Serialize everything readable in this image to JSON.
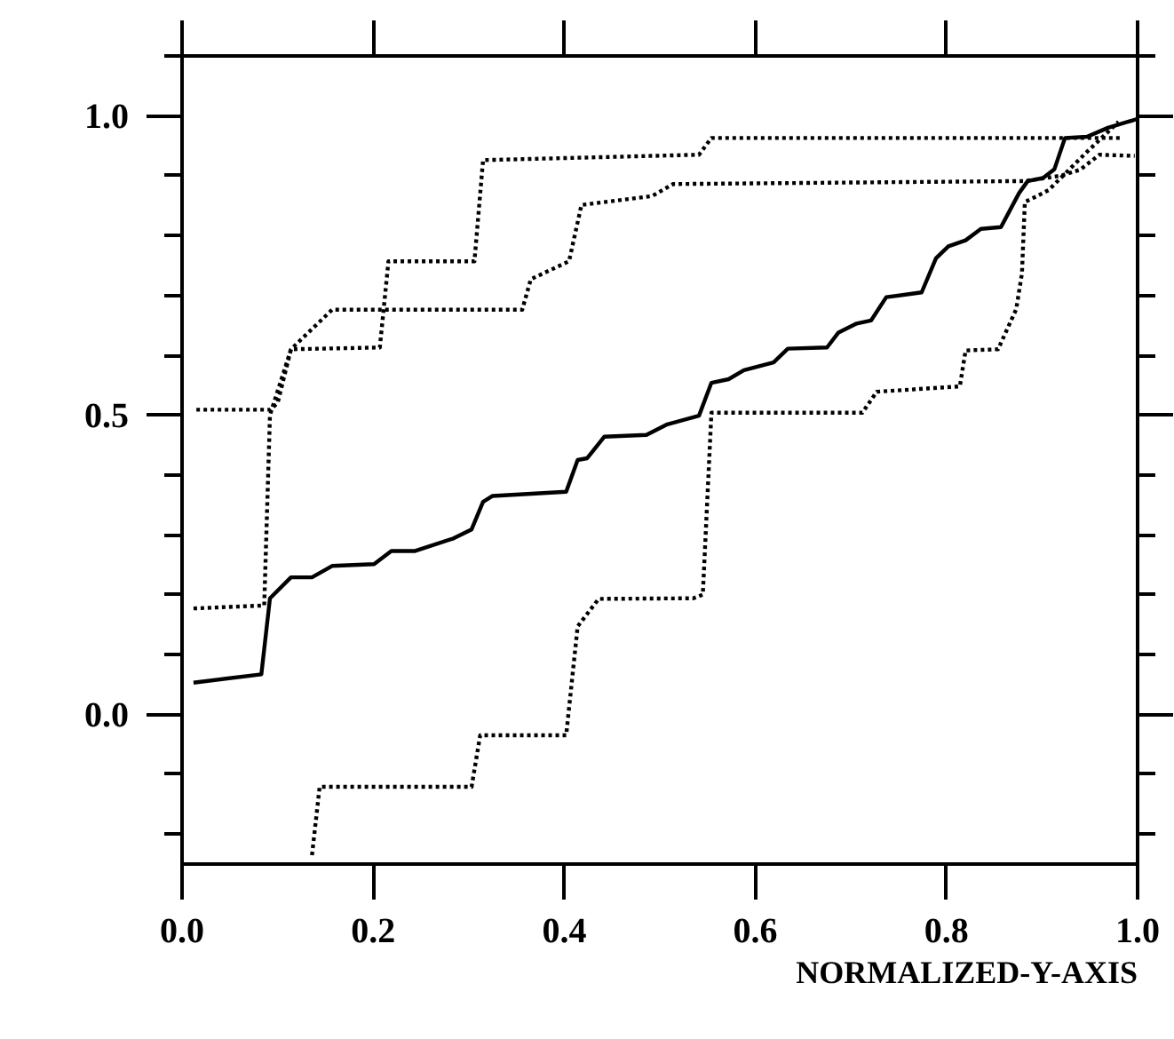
{
  "chart_data": {
    "type": "line",
    "xlabel": "NORMALIZED-Y-AXIS",
    "xlim": [
      0,
      1.0
    ],
    "ylim": [
      -0.25,
      1.1
    ],
    "xticks": [
      {
        "value": 0,
        "label": "0.0"
      },
      {
        "value": 0.2,
        "label": "0.2"
      },
      {
        "value": 0.4,
        "label": "0.4"
      },
      {
        "value": 0.6,
        "label": "0.6"
      },
      {
        "value": 0.8,
        "label": "0.8"
      },
      {
        "value": 1.0,
        "label": "1.0"
      }
    ],
    "yticks": [
      {
        "value": -0.2,
        "label": null
      },
      {
        "value": -0.1,
        "label": null
      },
      {
        "value": 0,
        "label": "0.0"
      },
      {
        "value": 0.1,
        "label": null
      },
      {
        "value": 0.2,
        "label": null
      },
      {
        "value": 0.3,
        "label": null
      },
      {
        "value": 0.4,
        "label": null
      },
      {
        "value": 0.5,
        "label": "0.5"
      },
      {
        "value": 0.6,
        "label": null
      },
      {
        "value": 0.7,
        "label": null
      },
      {
        "value": 0.8,
        "label": null
      },
      {
        "value": 0.9,
        "label": null
      },
      {
        "value": 1.0,
        "label": "1.0"
      },
      {
        "value": 1.1,
        "label": null
      }
    ],
    "grid": false,
    "marker": "none",
    "line_style": "solid",
    "series": [
      {
        "color": "#000000",
        "x": [
          0.012,
          0.083,
          0.092,
          0.114,
          0.136,
          0.157,
          0.201,
          0.219,
          0.244,
          0.284,
          0.303,
          0.315,
          0.325,
          0.402,
          0.414,
          0.424,
          0.442,
          0.486,
          0.507,
          0.541,
          0.554,
          0.572,
          0.588,
          0.619,
          0.634,
          0.675,
          0.687,
          0.706,
          0.721,
          0.737,
          0.774,
          0.789,
          0.802,
          0.82,
          0.836,
          0.857,
          0.876,
          0.885,
          0.901,
          0.913,
          0.924,
          0.947,
          0.969,
          0.994,
          1.0
        ],
        "values": [
          0.053,
          0.067,
          0.194,
          0.229,
          0.229,
          0.248,
          0.251,
          0.273,
          0.273,
          0.294,
          0.309,
          0.355,
          0.365,
          0.372,
          0.425,
          0.428,
          0.464,
          0.467,
          0.484,
          0.499,
          0.554,
          0.56,
          0.575,
          0.588,
          0.611,
          0.613,
          0.638,
          0.653,
          0.658,
          0.697,
          0.705,
          0.762,
          0.782,
          0.792,
          0.811,
          0.814,
          0.871,
          0.891,
          0.896,
          0.911,
          0.963,
          0.965,
          0.98,
          0.992,
          0.995
        ]
      },
      {
        "color": "#000000",
        "line_style": "dotted",
        "x": [
          0.015,
          0.092,
          0.1,
          0.114,
          0.207,
          0.216,
          0.306,
          0.315,
          0.541,
          0.554,
          0.985
        ],
        "values": [
          0.509,
          0.509,
          0.52,
          0.61,
          0.613,
          0.757,
          0.757,
          0.926,
          0.935,
          0.963,
          0.963
        ]
      },
      {
        "color": "#000000",
        "line_style": "dotted",
        "x": [
          0.012,
          0.086,
          0.092,
          0.114,
          0.157,
          0.356,
          0.365,
          0.405,
          0.418,
          0.492,
          0.514,
          0.882,
          0.92,
          0.94,
          0.96,
          0.997
        ],
        "values": [
          0.177,
          0.182,
          0.5,
          0.61,
          0.676,
          0.676,
          0.727,
          0.757,
          0.851,
          0.866,
          0.886,
          0.891,
          0.9,
          0.91,
          0.935,
          0.933
        ]
      },
      {
        "color": "#000000",
        "line_style": "dotted",
        "x": [
          0.136,
          0.144,
          0.303,
          0.312,
          0.402,
          0.414,
          0.436,
          0.535,
          0.545,
          0.554,
          0.712,
          0.727,
          0.814,
          0.82,
          0.854,
          0.873,
          0.879,
          0.882,
          0.895,
          0.907,
          0.944,
          0.98
        ],
        "values": [
          -0.235,
          -0.121,
          -0.121,
          -0.035,
          -0.035,
          0.147,
          0.193,
          0.194,
          0.2,
          0.504,
          0.504,
          0.539,
          0.548,
          0.608,
          0.61,
          0.677,
          0.737,
          0.856,
          0.866,
          0.876,
          0.935,
          0.99
        ]
      }
    ]
  }
}
